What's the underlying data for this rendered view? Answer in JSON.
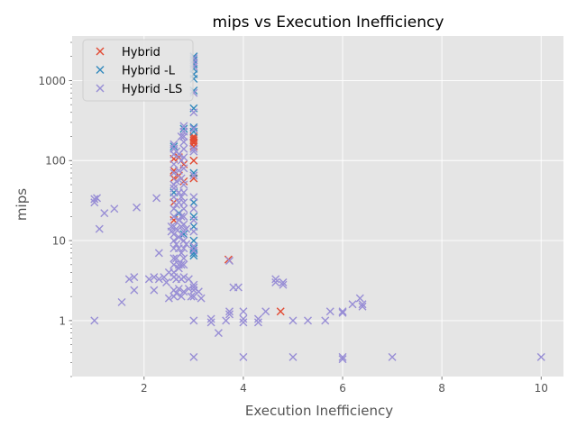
{
  "chart_data": {
    "type": "scatter",
    "title": "mips vs Execution Inefficiency",
    "xlabel": "Execution Inefficiency",
    "ylabel": "mips",
    "xlim": [
      0.55,
      10.45
    ],
    "ylim": [
      0.2,
      3600
    ],
    "yscale": "log",
    "grid": true,
    "style": "ggplot",
    "legend_position": "top-left",
    "marker": "x",
    "x_ticks": [
      2,
      4,
      6,
      8,
      10
    ],
    "x_tick_labels": [
      "2",
      "4",
      "6",
      "8",
      "10"
    ],
    "y_ticks": [
      1,
      10,
      100,
      1000
    ],
    "y_tick_labels": [
      "1",
      "10",
      "100",
      "1000"
    ],
    "series": [
      {
        "name": "Hybrid",
        "color": "#E24A33",
        "points": [
          [
            2.6,
            105
          ],
          [
            2.6,
            75
          ],
          [
            2.6,
            60
          ],
          [
            2.6,
            30
          ],
          [
            2.6,
            18
          ],
          [
            2.7,
            110
          ],
          [
            2.7,
            65
          ],
          [
            2.8,
            90
          ],
          [
            2.8,
            55
          ],
          [
            3.0,
            200
          ],
          [
            3.0,
            190
          ],
          [
            3.0,
            180
          ],
          [
            3.0,
            170
          ],
          [
            3.0,
            165
          ],
          [
            3.0,
            150
          ],
          [
            3.0,
            100
          ],
          [
            3.0,
            60
          ],
          [
            3.7,
            5.8
          ],
          [
            4.75,
            1.3
          ]
        ]
      },
      {
        "name": "Hybrid -L",
        "color": "#348ABD",
        "points": [
          [
            3.0,
            2000
          ],
          [
            3.0,
            1800
          ],
          [
            3.0,
            1600
          ],
          [
            3.0,
            1400
          ],
          [
            3.0,
            1200
          ],
          [
            3.0,
            1050
          ],
          [
            3.0,
            750
          ],
          [
            3.0,
            450
          ],
          [
            3.0,
            260
          ],
          [
            3.0,
            230
          ],
          [
            3.0,
            70
          ],
          [
            3.0,
            30
          ],
          [
            3.0,
            20
          ],
          [
            3.0,
            15
          ],
          [
            3.0,
            10
          ],
          [
            3.0,
            8
          ],
          [
            3.0,
            7
          ],
          [
            3.0,
            6.5
          ],
          [
            2.6,
            150
          ],
          [
            2.6,
            40
          ],
          [
            2.7,
            22
          ],
          [
            2.8,
            250
          ],
          [
            2.8,
            12
          ]
        ]
      },
      {
        "name": "Hybrid -LS",
        "color": "#988ED5",
        "points": [
          [
            1.0,
            33
          ],
          [
            1.0,
            30
          ],
          [
            1.0,
            1.0
          ],
          [
            1.05,
            34
          ],
          [
            1.1,
            14
          ],
          [
            1.2,
            22
          ],
          [
            1.4,
            25
          ],
          [
            1.55,
            1.7
          ],
          [
            1.7,
            3.3
          ],
          [
            1.8,
            3.5
          ],
          [
            1.8,
            2.4
          ],
          [
            1.85,
            26
          ],
          [
            2.1,
            3.3
          ],
          [
            2.2,
            3.5
          ],
          [
            2.2,
            2.4
          ],
          [
            2.25,
            34
          ],
          [
            2.3,
            7
          ],
          [
            2.3,
            3.3
          ],
          [
            2.4,
            3.5
          ],
          [
            2.45,
            3.0
          ],
          [
            2.5,
            4.0
          ],
          [
            2.5,
            1.9
          ],
          [
            2.55,
            15
          ],
          [
            2.55,
            13
          ],
          [
            2.6,
            160
          ],
          [
            2.6,
            140
          ],
          [
            2.6,
            120
          ],
          [
            2.6,
            90
          ],
          [
            2.6,
            70
          ],
          [
            2.6,
            50
          ],
          [
            2.6,
            45
          ],
          [
            2.6,
            35
          ],
          [
            2.6,
            25
          ],
          [
            2.6,
            20
          ],
          [
            2.6,
            15
          ],
          [
            2.6,
            12
          ],
          [
            2.6,
            10
          ],
          [
            2.6,
            8
          ],
          [
            2.6,
            6
          ],
          [
            2.6,
            5
          ],
          [
            2.6,
            4
          ],
          [
            2.6,
            3.5
          ],
          [
            2.6,
            2.4
          ],
          [
            2.6,
            2.0
          ],
          [
            2.65,
            130
          ],
          [
            2.65,
            55
          ],
          [
            2.65,
            28
          ],
          [
            2.65,
            14
          ],
          [
            2.65,
            9
          ],
          [
            2.65,
            6
          ],
          [
            2.65,
            3.3
          ],
          [
            2.65,
            2.2
          ],
          [
            2.7,
            120
          ],
          [
            2.7,
            75
          ],
          [
            2.7,
            40
          ],
          [
            2.7,
            30
          ],
          [
            2.7,
            18
          ],
          [
            2.7,
            11
          ],
          [
            2.7,
            8
          ],
          [
            2.7,
            5
          ],
          [
            2.7,
            4.5
          ],
          [
            2.7,
            2.5
          ],
          [
            2.75,
            200
          ],
          [
            2.75,
            100
          ],
          [
            2.75,
            60
          ],
          [
            2.75,
            35
          ],
          [
            2.75,
            20
          ],
          [
            2.75,
            15
          ],
          [
            2.75,
            12
          ],
          [
            2.75,
            7
          ],
          [
            2.75,
            5
          ],
          [
            2.75,
            3.3
          ],
          [
            2.75,
            2.0
          ],
          [
            2.8,
            270
          ],
          [
            2.8,
            230
          ],
          [
            2.8,
            200
          ],
          [
            2.8,
            170
          ],
          [
            2.8,
            140
          ],
          [
            2.8,
            110
          ],
          [
            2.8,
            80
          ],
          [
            2.8,
            50
          ],
          [
            2.8,
            40
          ],
          [
            2.8,
            30
          ],
          [
            2.8,
            25
          ],
          [
            2.8,
            20
          ],
          [
            2.8,
            16
          ],
          [
            2.8,
            13
          ],
          [
            2.8,
            10
          ],
          [
            2.8,
            8
          ],
          [
            2.8,
            6
          ],
          [
            2.8,
            5
          ],
          [
            2.8,
            3.5
          ],
          [
            2.8,
            2.3
          ],
          [
            2.85,
            14
          ],
          [
            2.85,
            9
          ],
          [
            2.9,
            3.3
          ],
          [
            2.9,
            2.5
          ],
          [
            2.95,
            2.0
          ],
          [
            3.0,
            1900
          ],
          [
            3.0,
            1700
          ],
          [
            3.0,
            1500
          ],
          [
            3.0,
            700
          ],
          [
            3.0,
            400
          ],
          [
            3.0,
            250
          ],
          [
            3.0,
            140
          ],
          [
            3.0,
            130
          ],
          [
            3.0,
            65
          ],
          [
            3.0,
            35
          ],
          [
            3.0,
            25
          ],
          [
            3.0,
            18
          ],
          [
            3.0,
            13
          ],
          [
            3.0,
            8.5
          ],
          [
            3.0,
            7.5
          ],
          [
            3.0,
            2.8
          ],
          [
            3.0,
            2.6
          ],
          [
            3.0,
            2.4
          ],
          [
            3.0,
            2.0
          ],
          [
            3.0,
            1.0
          ],
          [
            3.0,
            0.35
          ],
          [
            3.1,
            2.3
          ],
          [
            3.15,
            1.9
          ],
          [
            3.35,
            1.05
          ],
          [
            3.35,
            0.95
          ],
          [
            3.5,
            0.7
          ],
          [
            3.65,
            1.0
          ],
          [
            3.72,
            5.6
          ],
          [
            3.72,
            1.3
          ],
          [
            3.72,
            1.2
          ],
          [
            3.8,
            2.6
          ],
          [
            3.9,
            2.6
          ],
          [
            4.0,
            1.3
          ],
          [
            4.0,
            1.05
          ],
          [
            4.0,
            0.95
          ],
          [
            4.0,
            0.35
          ],
          [
            4.3,
            1.05
          ],
          [
            4.3,
            0.95
          ],
          [
            4.45,
            1.3
          ],
          [
            4.65,
            3.3
          ],
          [
            4.65,
            3.0
          ],
          [
            4.8,
            3.0
          ],
          [
            4.8,
            2.8
          ],
          [
            5.0,
            1.0
          ],
          [
            5.0,
            0.35
          ],
          [
            5.3,
            1.0
          ],
          [
            5.65,
            1.0
          ],
          [
            5.75,
            1.3
          ],
          [
            6.0,
            1.3
          ],
          [
            6.0,
            1.25
          ],
          [
            6.0,
            0.35
          ],
          [
            6.0,
            0.33
          ],
          [
            6.2,
            1.6
          ],
          [
            6.35,
            1.9
          ],
          [
            6.4,
            1.6
          ],
          [
            6.4,
            1.5
          ],
          [
            7.0,
            0.35
          ],
          [
            10.0,
            0.35
          ]
        ]
      }
    ]
  }
}
